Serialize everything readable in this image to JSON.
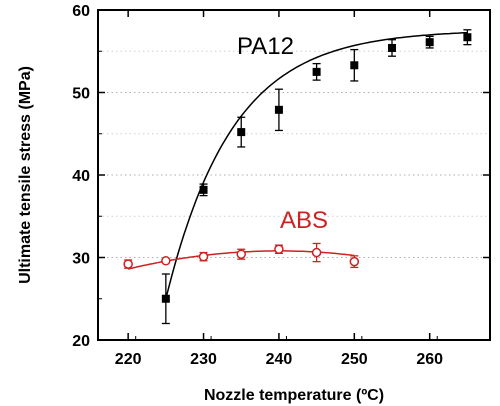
{
  "chart_data": {
    "type": "scatter",
    "xlabel": "Nozzle temperature (ºC)",
    "ylabel": "Ultimate tensile stress (MPa)",
    "xlim": [
      216,
      268
    ],
    "ylim": [
      20,
      60
    ],
    "x_ticks": [
      220,
      230,
      240,
      250,
      260
    ],
    "y_ticks": [
      20,
      30,
      40,
      50,
      60
    ],
    "grid": "horizontal dotted",
    "series": [
      {
        "name": "PA12",
        "color": "#000000",
        "marker": "filled-square",
        "x": [
          225,
          230,
          235,
          240,
          245,
          250,
          255,
          260,
          265
        ],
        "y": [
          25.0,
          38.2,
          45.2,
          47.9,
          52.5,
          53.3,
          55.4,
          56.1,
          56.7
        ],
        "err": [
          3.0,
          0.7,
          1.8,
          2.5,
          1.0,
          1.9,
          1.0,
          0.7,
          0.9
        ]
      },
      {
        "name": "ABS",
        "color": "#cc2222",
        "marker": "open-circle",
        "x": [
          220,
          225,
          230,
          235,
          240,
          245,
          250
        ],
        "y": [
          29.2,
          29.6,
          30.1,
          30.4,
          31.0,
          30.6,
          29.5
        ],
        "err": [
          0.5,
          0.2,
          0.5,
          0.6,
          0.5,
          1.1,
          0.7
        ]
      }
    ]
  }
}
